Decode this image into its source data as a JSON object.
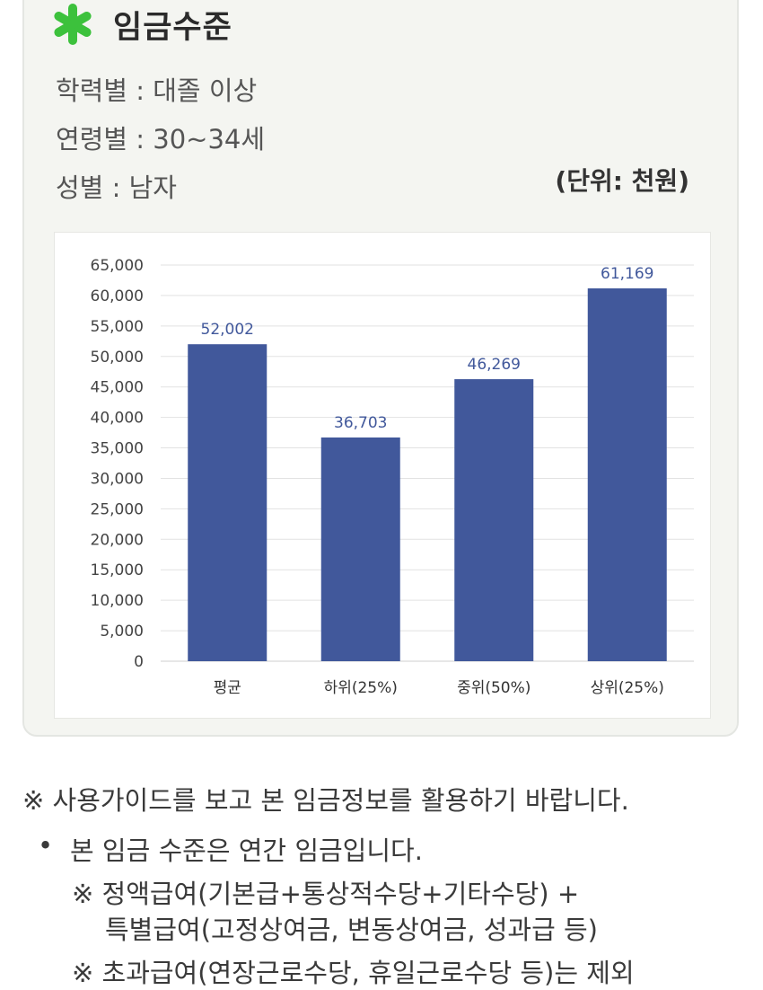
{
  "header": {
    "title": "임금수준",
    "icon": "green-asterisk-icon",
    "accent_color": "#3cc13c"
  },
  "filters": {
    "education": "학력별 : 대졸 이상",
    "age": "연령별 : 30~34세",
    "gender": "성별 : 남자"
  },
  "unit_label": "(단위: 천원)",
  "chart_data": {
    "type": "bar",
    "categories": [
      "평균",
      "하위(25%)",
      "중위(50%)",
      "상위(25%)"
    ],
    "values": [
      52002,
      36703,
      46269,
      61169
    ],
    "data_labels": [
      "52,002",
      "36,703",
      "46,269",
      "61,169"
    ],
    "ylim": [
      0,
      65000
    ],
    "yticks": [
      0,
      5000,
      10000,
      15000,
      20000,
      25000,
      30000,
      35000,
      40000,
      45000,
      50000,
      55000,
      60000,
      65000
    ],
    "ytick_labels": [
      "0",
      "5,000",
      "10,000",
      "15,000",
      "20,000",
      "25,000",
      "30,000",
      "35,000",
      "40,000",
      "45,000",
      "50,000",
      "55,000",
      "60,000",
      "65,000"
    ],
    "grid": true,
    "bar_color": "#41589b",
    "label_color": "#41589b"
  },
  "notes": {
    "guide": "※ 사용가이드를 보고 본 임금정보를 활용하기 바랍니다.",
    "bullet_symbol": "•",
    "annual": "본 임금 수준은 연간 임금입니다.",
    "included_line1": "※ 정액급여(기본급+통상적수당+기타수당) +",
    "included_line2": "특별급여(고정상여금, 변동상여금, 성과급 등)",
    "excluded": "※ 초과급여(연장근로수당, 휴일근로수당 등)는 제외"
  }
}
